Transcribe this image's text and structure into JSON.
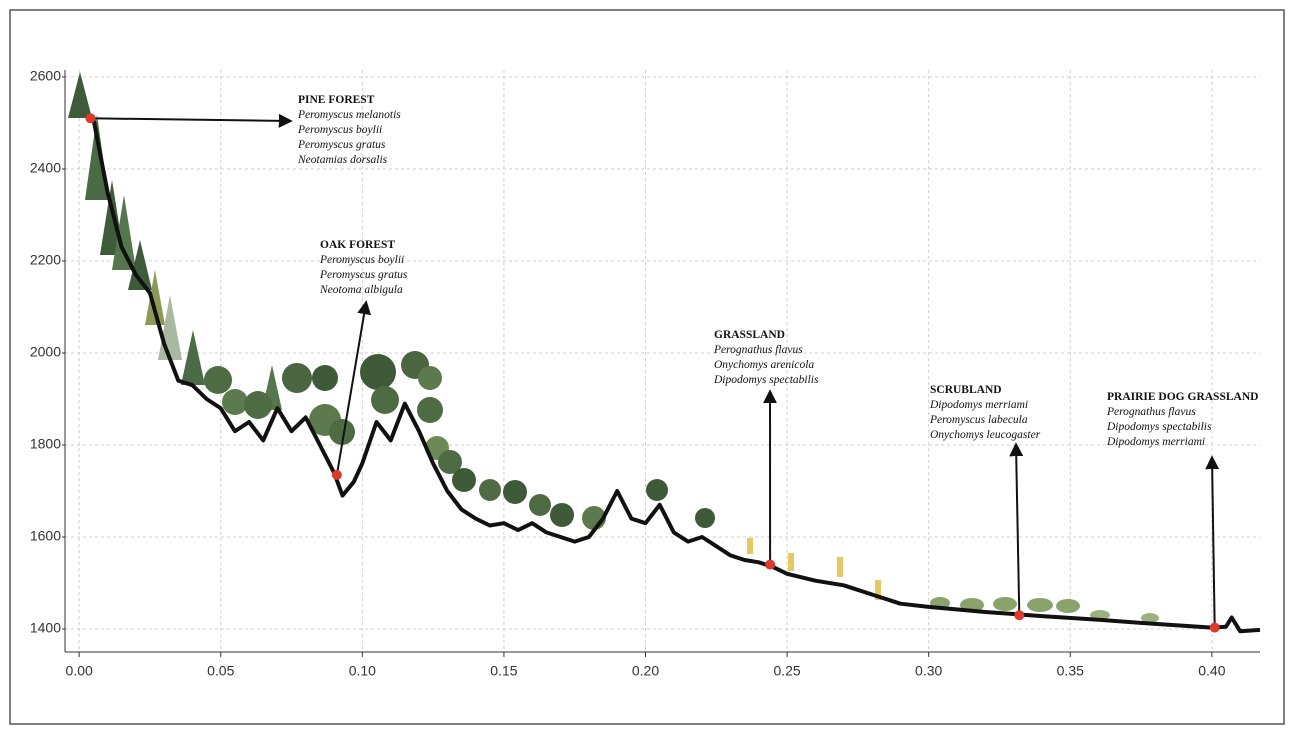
{
  "chart_data": {
    "type": "line",
    "x": [
      0.005,
      0.01,
      0.015,
      0.02,
      0.025,
      0.03,
      0.035,
      0.04,
      0.045,
      0.05,
      0.055,
      0.06,
      0.065,
      0.07,
      0.075,
      0.08,
      0.085,
      0.09,
      0.093,
      0.097,
      0.1,
      0.105,
      0.11,
      0.115,
      0.12,
      0.125,
      0.13,
      0.135,
      0.14,
      0.145,
      0.15,
      0.155,
      0.16,
      0.165,
      0.17,
      0.175,
      0.18,
      0.185,
      0.19,
      0.195,
      0.2,
      0.205,
      0.21,
      0.215,
      0.22,
      0.225,
      0.23,
      0.235,
      0.24,
      0.245,
      0.25,
      0.26,
      0.27,
      0.28,
      0.29,
      0.3,
      0.32,
      0.34,
      0.36,
      0.38,
      0.4,
      0.405,
      0.407,
      0.41,
      0.417
    ],
    "values": [
      2510,
      2350,
      2230,
      2170,
      2130,
      2020,
      1940,
      1930,
      1900,
      1880,
      1830,
      1850,
      1810,
      1880,
      1830,
      1860,
      1800,
      1740,
      1690,
      1720,
      1760,
      1850,
      1810,
      1890,
      1830,
      1760,
      1700,
      1660,
      1640,
      1625,
      1630,
      1615,
      1630,
      1610,
      1600,
      1590,
      1600,
      1640,
      1700,
      1640,
      1630,
      1670,
      1610,
      1590,
      1600,
      1580,
      1560,
      1550,
      1545,
      1535,
      1520,
      1505,
      1495,
      1475,
      1455,
      1448,
      1437,
      1428,
      1420,
      1411,
      1403,
      1405,
      1425,
      1395,
      1398
    ],
    "color": "#111111",
    "xlim": [
      -0.005,
      0.417
    ],
    "ylim": [
      1350,
      2615
    ],
    "xticks": [
      {
        "value": 0,
        "label": "0.00"
      },
      {
        "value": 0.05,
        "label": "0.05"
      },
      {
        "value": 0.1,
        "label": "0.10"
      },
      {
        "value": 0.15,
        "label": "0.15"
      },
      {
        "value": 0.2,
        "label": "0.20"
      },
      {
        "value": 0.25,
        "label": "0.25"
      },
      {
        "value": 0.3,
        "label": "0.30"
      },
      {
        "value": 0.35,
        "label": "0.35"
      },
      {
        "value": 0.4,
        "label": "0.40"
      }
    ],
    "yticks": [
      1400,
      1600,
      1800,
      2000,
      2200,
      2400,
      2600
    ],
    "grid": true,
    "point_color": "#e0392b",
    "annotations": [
      {
        "label": "PINE FOREST",
        "species": [
          "Peromyscus melanotis",
          "Peromyscus boylii",
          "Peromyscus gratus",
          "Neotamias dorsalis"
        ],
        "x": 0.004,
        "y": 2510
      },
      {
        "label": "OAK FOREST",
        "species": [
          "Peromyscus boylii",
          "Peromyscus gratus",
          "Neotoma albigula"
        ],
        "x": 0.091,
        "y": 1735
      },
      {
        "label": "GRASSLAND",
        "species": [
          "Perognathus flavus",
          "Onychomys arenicola",
          "Dipodomys spectabilis"
        ],
        "x": 0.244,
        "y": 1540
      },
      {
        "label": "SCRUBLAND",
        "species": [
          "Dipodomys merriami",
          "Peromyscus labecula",
          "Onychomys leucogaster"
        ],
        "x": 0.332,
        "y": 1430
      },
      {
        "label": "PRAIRIE DOG GRASSLAND",
        "species": [
          "Perognathus flavus",
          "Dipodomys spectabilis",
          "Dipodomys merriami"
        ],
        "x": 0.401,
        "y": 1403
      }
    ]
  }
}
